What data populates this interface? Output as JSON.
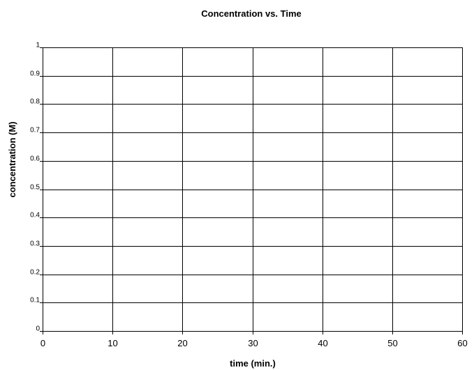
{
  "chart_data": {
    "type": "line",
    "title": "Concentration vs. Time",
    "xlabel": "time (min.)",
    "ylabel": "concentration (M)",
    "xlim": [
      0,
      60
    ],
    "ylim": [
      0,
      1
    ],
    "x_ticks": [
      0,
      10,
      20,
      30,
      40,
      50,
      60
    ],
    "y_ticks": [
      0,
      0.1,
      0.2,
      0.3,
      0.4,
      0.5,
      0.6,
      0.7,
      0.8,
      0.9,
      1
    ],
    "x_tick_labels": [
      "0",
      "10",
      "20",
      "30",
      "40",
      "50",
      "60"
    ],
    "y_tick_labels": [
      "0",
      "0.1",
      "0.2",
      "0.3",
      "0.4",
      "0.5",
      "0.6",
      "0.7",
      "0.8",
      "0.9",
      "1"
    ],
    "grid": true,
    "legend": "none",
    "series": []
  }
}
